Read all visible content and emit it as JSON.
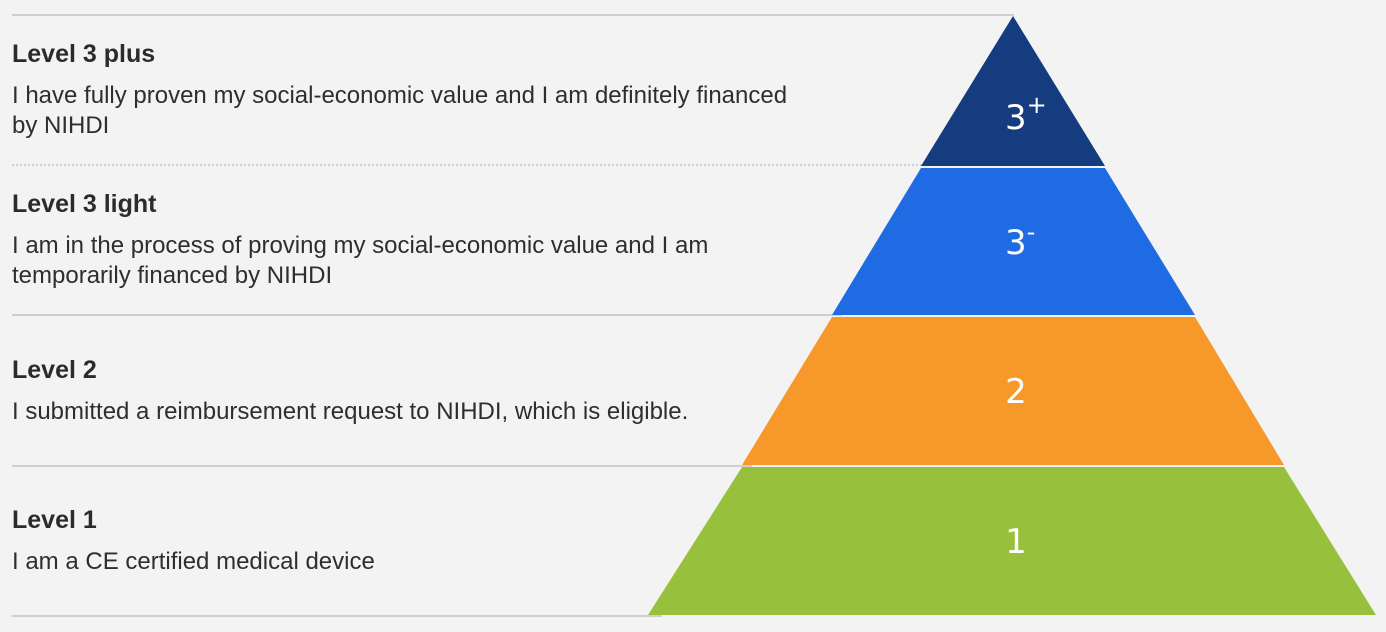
{
  "levels": [
    {
      "title": "Level 3 plus",
      "description": "I have fully proven my social-economic value and I am definitely financed by NIHDI"
    },
    {
      "title": "Level 3 light",
      "description": "I am in the process of proving my social-economic value and I am temporarily financed by NIHDI"
    },
    {
      "title": "Level 2",
      "description": "I submitted a reimbursement request to NIHDI, which is eligible."
    },
    {
      "title": "Level 1",
      "description": "I am a CE certified medical device"
    }
  ],
  "pyramid": {
    "tiers": [
      {
        "label": "3",
        "superscript": "+",
        "color": "#143c7e"
      },
      {
        "label": "3",
        "superscript": "-",
        "color": "#1f6be3"
      },
      {
        "label": "2",
        "superscript": "",
        "color": "#f7982a"
      },
      {
        "label": "1",
        "superscript": "",
        "color": "#97c13c"
      }
    ]
  }
}
